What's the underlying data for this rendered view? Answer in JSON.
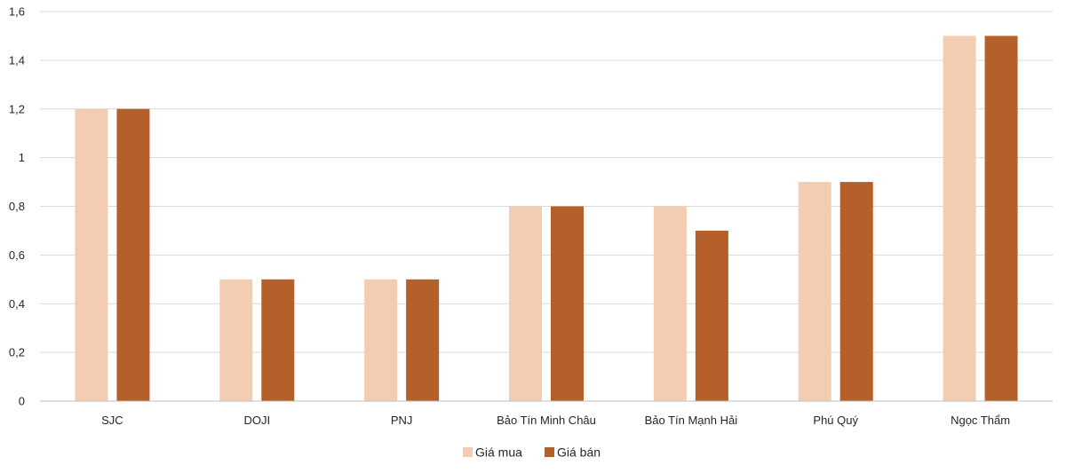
{
  "chart_data": {
    "type": "bar",
    "title": "",
    "xlabel": "",
    "ylabel": "",
    "ylim": [
      0,
      1.6
    ],
    "yticks": [
      0,
      0.2,
      0.4,
      0.6,
      0.8,
      1,
      1.2,
      1.4,
      1.6
    ],
    "ytick_labels": [
      "0",
      "0,2",
      "0,4",
      "0,6",
      "0,8",
      "1",
      "1,2",
      "1,4",
      "1,6"
    ],
    "grid": true,
    "legend_position": "bottom",
    "categories": [
      "SJC",
      "DOJI",
      "PNJ",
      "Bảo Tín Minh Châu",
      "Bảo Tín Mạnh Hải",
      "Phú Quý",
      "Ngọc Thẩm"
    ],
    "series": [
      {
        "name": "Giá mua",
        "color": "#f2cdb1",
        "values": [
          1.2,
          0.5,
          0.5,
          0.8,
          0.8,
          0.9,
          1.5
        ]
      },
      {
        "name": "Giá bán",
        "color": "#b5602a",
        "values": [
          1.2,
          0.5,
          0.5,
          0.8,
          0.7,
          0.9,
          1.5
        ]
      }
    ]
  }
}
